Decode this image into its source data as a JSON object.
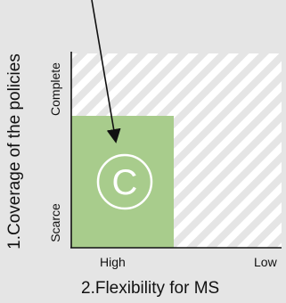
{
  "y_axis": {
    "title": "1.Coverage of the policies",
    "high_label": "Complete",
    "low_label": "Scarce"
  },
  "x_axis": {
    "title": "2.Flexibility for MS",
    "left_label": "High",
    "right_label": "Low"
  },
  "badge": {
    "letter": "C"
  },
  "colors": {
    "background": "#e5e5e5",
    "hatch": "#ffffff",
    "green_area": "#a8cc8c",
    "axis": "#111111"
  }
}
